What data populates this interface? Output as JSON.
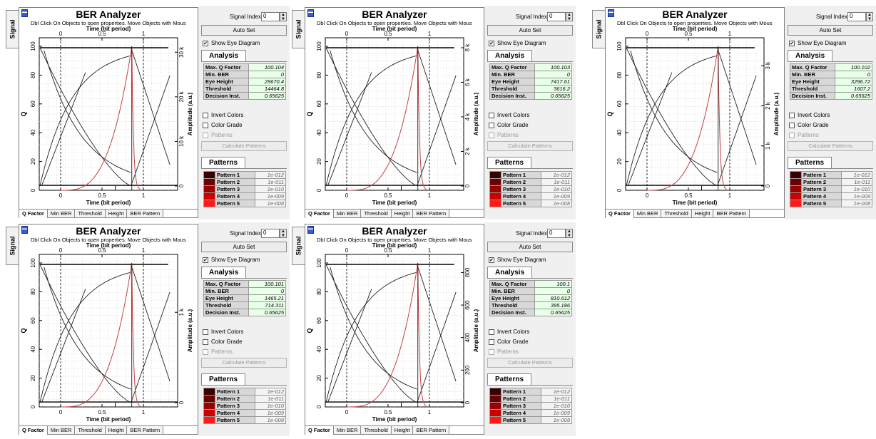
{
  "common": {
    "signal_tab": "Signal",
    "title": "BER Analyzer",
    "subtitle": "Dbl Click On Objects to open properties.  Move Objects with Mous",
    "x_axis_label": "Time (bit period)",
    "y_left_label": "Q",
    "y_right_label": "Amplitude (a.u.)",
    "x_ticks": [
      "0",
      "0.5",
      "1"
    ],
    "q_ticks": [
      "0",
      "20",
      "40",
      "60",
      "80",
      "100"
    ],
    "signal_index_label": "Signal Index",
    "signal_index_value": "0",
    "auto_set": "Auto Set",
    "show_eye_diagram": "Show Eye Diagram",
    "analysis_heading": "Analysis",
    "analysis_keys": [
      "Max. Q Factor",
      "Min. BER",
      "Eye Height",
      "Threshold",
      "Decision Inst."
    ],
    "invert_colors": "Invert Colors",
    "color_grade": "Color Grade",
    "patterns_check": "Patterns",
    "calculate_patterns": "Calculate Patterns",
    "patterns_heading": "Patterns",
    "patterns": [
      {
        "name": "Pattern 1",
        "value": "1e-012",
        "color": "#3a0000"
      },
      {
        "name": "Pattern 2",
        "value": "1e-011",
        "color": "#6a0000"
      },
      {
        "name": "Pattern 3",
        "value": "1e-010",
        "color": "#9a0000"
      },
      {
        "name": "Pattern 4",
        "value": "1e-009",
        "color": "#cc0000"
      },
      {
        "name": "Pattern 5",
        "value": "1e-008",
        "color": "#ff1a1a"
      }
    ],
    "bottom_tabs": [
      "Q Factor",
      "Min BER",
      "Threshold",
      "Height",
      "BER Pattern"
    ]
  },
  "panels": [
    {
      "analysis_values": [
        "100.104",
        "0",
        "29670.4",
        "14464.8",
        "0.65625"
      ],
      "amp_ticks": [
        "0",
        "10 k",
        "20 k",
        "30 k"
      ],
      "amp_max": 31000
    },
    {
      "analysis_values": [
        "100.103",
        "0",
        "7417.61",
        "3616.2",
        "0.65625"
      ],
      "amp_ticks": [
        "0",
        "2 k",
        "4 k",
        "6 k",
        "8 k"
      ],
      "amp_max": 8000
    },
    {
      "analysis_values": [
        "100.102",
        "0",
        "3296.72",
        "1607.2",
        "0.65625"
      ],
      "amp_ticks": [
        "0",
        "1 k",
        "2 k",
        "3 k"
      ],
      "amp_max": 3450
    },
    {
      "analysis_values": [
        "100.101",
        "0",
        "1465.21",
        "714.311",
        "0.65625"
      ],
      "amp_ticks": [
        "0",
        "1 k"
      ],
      "amp_max": 1530
    },
    {
      "analysis_values": [
        "100.1",
        "0",
        "810.612",
        "395.186",
        "0.65625"
      ],
      "amp_ticks": [
        "0",
        "200",
        "400",
        "600",
        "800"
      ],
      "amp_max": 850
    }
  ]
}
